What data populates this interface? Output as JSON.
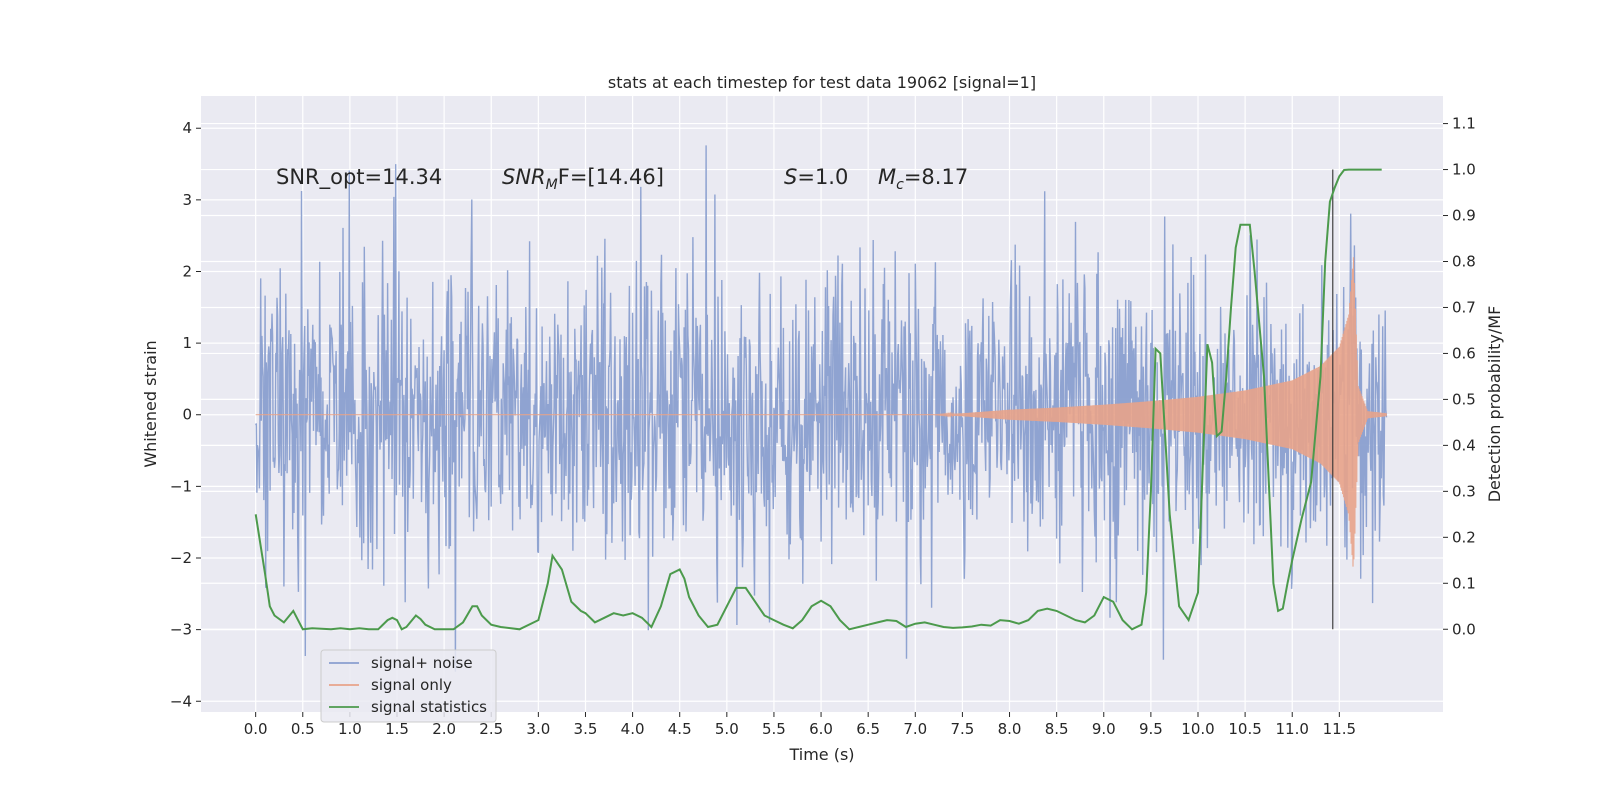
{
  "chart_data": {
    "type": "line",
    "title": "stats at each timestep for test data 19062 [signal=1]",
    "xlabel": "Time (s)",
    "ylabel": "Whitened strain",
    "y2label": "Detection probability/MF",
    "xlim": [
      -0.58,
      12.6
    ],
    "ylim": [
      -4.15,
      4.45
    ],
    "y2lim": [
      -0.18,
      1.16
    ],
    "x_ticks": [
      0.0,
      0.5,
      1.0,
      1.5,
      2.0,
      2.5,
      3.0,
      3.5,
      4.0,
      4.5,
      5.0,
      5.5,
      6.0,
      6.5,
      7.0,
      7.5,
      8.0,
      8.5,
      9.0,
      9.5,
      10.0,
      10.5,
      11.0,
      11.5
    ],
    "x_tick_labels": [
      "0.0",
      "0.5",
      "1.0",
      "1.5",
      "2.0",
      "2.5",
      "3.0",
      "3.5",
      "4.0",
      "4.5",
      "5.0",
      "5.5",
      "6.0",
      "6.5",
      "7.0",
      "7.5",
      "8.0",
      "8.5",
      "9.0",
      "9.5",
      "10.0",
      "10.5",
      "11.0",
      "11.5"
    ],
    "y_ticks": [
      -4,
      -3,
      -2,
      -1,
      0,
      1,
      2,
      3,
      4
    ],
    "y_tick_labels": [
      "−4",
      "−3",
      "−2",
      "−1",
      "0",
      "1",
      "2",
      "3",
      "4"
    ],
    "y2_ticks": [
      0.0,
      0.1,
      0.2,
      0.3,
      0.4,
      0.5,
      0.6,
      0.7,
      0.8,
      0.9,
      1.0,
      1.1
    ],
    "y2_tick_labels": [
      "0.0",
      "0.1",
      "0.2",
      "0.3",
      "0.4",
      "0.5",
      "0.6",
      "0.7",
      "0.8",
      "0.9",
      "1.0",
      "1.1"
    ],
    "grid": true,
    "legend_position": "lower-left",
    "annotations": {
      "snr_opt": "SNR_opt=14.34",
      "snr_mf_prefix": "SNR",
      "snr_mf_sub": "M",
      "snr_mf_rest": "F=[14.46]",
      "s_sym": "S",
      "s_rest": "=1.0",
      "mc_sym": "M",
      "mc_sub": "c",
      "mc_rest": "=8.17"
    },
    "vertical_line_x": 11.43,
    "series": [
      {
        "name": "signal+ noise",
        "axis": "left",
        "color": "#8a9fcf",
        "description": "whitened noisy strain, approx. gaussian, sigma ~1, x from 0.0 to 12.0 s",
        "x_range": [
          0.0,
          12.0
        ],
        "typical_envelope": [
          -2.0,
          2.0
        ],
        "extremes": [
          -3.75,
          4.1
        ]
      },
      {
        "name": "signal only",
        "axis": "left",
        "color": "#e8a38a",
        "description": "chirp signal, near zero until ~7.3 s, amplitude grows to ~2.2 at 11.65 s then rings down",
        "x_range": [
          0.0,
          12.0
        ],
        "envelope_points": {
          "x": [
            0.0,
            7.2,
            7.5,
            8.0,
            8.5,
            9.0,
            9.5,
            10.0,
            10.5,
            11.0,
            11.3,
            11.5,
            11.6,
            11.65,
            11.7,
            11.8,
            12.0
          ],
          "amplitude": [
            0.0,
            0.0,
            0.02,
            0.07,
            0.1,
            0.14,
            0.19,
            0.25,
            0.34,
            0.48,
            0.68,
            0.95,
            1.4,
            2.2,
            0.4,
            0.05,
            0.02
          ]
        }
      },
      {
        "name": "signal statistics",
        "axis": "right",
        "color": "#4c9a4c",
        "x": [
          0.0,
          0.1,
          0.15,
          0.2,
          0.3,
          0.4,
          0.5,
          0.6,
          0.7,
          0.8,
          0.9,
          1.0,
          1.1,
          1.2,
          1.3,
          1.4,
          1.45,
          1.5,
          1.55,
          1.6,
          1.7,
          1.75,
          1.8,
          1.9,
          2.0,
          2.1,
          2.2,
          2.3,
          2.35,
          2.4,
          2.5,
          2.6,
          2.8,
          3.0,
          3.1,
          3.15,
          3.25,
          3.35,
          3.45,
          3.5,
          3.6,
          3.7,
          3.8,
          3.9,
          4.0,
          4.1,
          4.2,
          4.3,
          4.4,
          4.5,
          4.55,
          4.6,
          4.7,
          4.8,
          4.9,
          5.0,
          5.1,
          5.2,
          5.3,
          5.4,
          5.5,
          5.6,
          5.7,
          5.8,
          5.9,
          6.0,
          6.1,
          6.2,
          6.3,
          6.4,
          6.5,
          6.6,
          6.7,
          6.8,
          6.9,
          7.0,
          7.1,
          7.2,
          7.3,
          7.4,
          7.5,
          7.6,
          7.7,
          7.8,
          7.9,
          8.0,
          8.1,
          8.2,
          8.3,
          8.4,
          8.5,
          8.6,
          8.7,
          8.8,
          8.9,
          9.0,
          9.1,
          9.2,
          9.3,
          9.4,
          9.45,
          9.5,
          9.55,
          9.6,
          9.7,
          9.8,
          9.9,
          10.0,
          10.05,
          10.1,
          10.15,
          10.2,
          10.25,
          10.3,
          10.35,
          10.4,
          10.45,
          10.5,
          10.55,
          10.6,
          10.7,
          10.8,
          10.85,
          10.9,
          10.95,
          11.0,
          11.1,
          11.2,
          11.3,
          11.35,
          11.4,
          11.45,
          11.5,
          11.55,
          11.6,
          11.65,
          11.7,
          11.8,
          11.95
        ],
        "values": [
          0.25,
          0.12,
          0.05,
          0.03,
          0.015,
          0.04,
          0.0,
          0.002,
          0.001,
          0.0,
          0.002,
          0.0,
          0.002,
          0.0,
          0.0,
          0.02,
          0.025,
          0.02,
          0.0,
          0.005,
          0.03,
          0.022,
          0.01,
          0.0,
          0.0,
          0.0,
          0.015,
          0.05,
          0.05,
          0.03,
          0.01,
          0.005,
          0.0,
          0.02,
          0.1,
          0.16,
          0.13,
          0.06,
          0.04,
          0.035,
          0.015,
          0.025,
          0.035,
          0.03,
          0.035,
          0.025,
          0.005,
          0.05,
          0.12,
          0.13,
          0.11,
          0.07,
          0.03,
          0.005,
          0.01,
          0.05,
          0.09,
          0.09,
          0.06,
          0.03,
          0.02,
          0.01,
          0.002,
          0.02,
          0.05,
          0.062,
          0.05,
          0.02,
          0.0,
          0.005,
          0.01,
          0.015,
          0.02,
          0.018,
          0.005,
          0.012,
          0.015,
          0.01,
          0.005,
          0.003,
          0.004,
          0.006,
          0.01,
          0.008,
          0.02,
          0.018,
          0.012,
          0.02,
          0.04,
          0.045,
          0.04,
          0.03,
          0.02,
          0.015,
          0.03,
          0.07,
          0.06,
          0.02,
          0.0,
          0.01,
          0.08,
          0.3,
          0.61,
          0.6,
          0.25,
          0.05,
          0.02,
          0.08,
          0.35,
          0.62,
          0.58,
          0.42,
          0.43,
          0.55,
          0.7,
          0.83,
          0.88,
          0.88,
          0.88,
          0.78,
          0.55,
          0.1,
          0.04,
          0.045,
          0.1,
          0.15,
          0.24,
          0.32,
          0.55,
          0.8,
          0.93,
          0.96,
          0.985,
          0.999,
          1.0,
          1.0,
          1.0,
          1.0,
          1.0
        ]
      }
    ]
  }
}
